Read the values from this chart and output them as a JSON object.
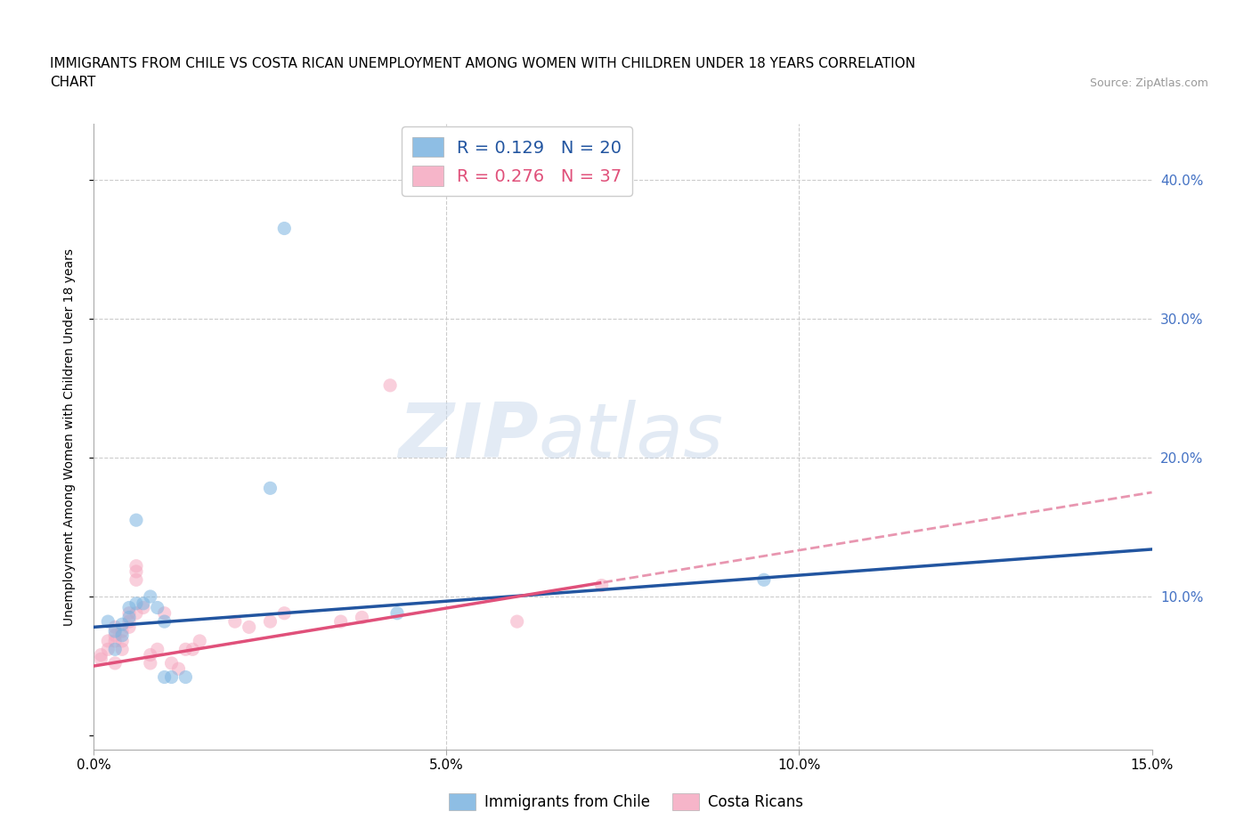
{
  "title_line1": "IMMIGRANTS FROM CHILE VS COSTA RICAN UNEMPLOYMENT AMONG WOMEN WITH CHILDREN UNDER 18 YEARS CORRELATION",
  "title_line2": "CHART",
  "source": "Source: ZipAtlas.com",
  "ylabel": "Unemployment Among Women with Children Under 18 years",
  "xlim": [
    0.0,
    0.15
  ],
  "ylim": [
    -0.01,
    0.44
  ],
  "xticks": [
    0.0,
    0.05,
    0.1,
    0.15
  ],
  "xtick_labels": [
    "0.0%",
    "5.0%",
    "10.0%",
    "15.0%"
  ],
  "yticks": [
    0.0,
    0.1,
    0.2,
    0.3,
    0.4
  ],
  "blue_scatter": [
    [
      0.002,
      0.082
    ],
    [
      0.003,
      0.075
    ],
    [
      0.003,
      0.062
    ],
    [
      0.004,
      0.08
    ],
    [
      0.004,
      0.072
    ],
    [
      0.005,
      0.092
    ],
    [
      0.005,
      0.085
    ],
    [
      0.006,
      0.095
    ],
    [
      0.006,
      0.155
    ],
    [
      0.007,
      0.095
    ],
    [
      0.008,
      0.1
    ],
    [
      0.009,
      0.092
    ],
    [
      0.01,
      0.082
    ],
    [
      0.01,
      0.042
    ],
    [
      0.011,
      0.042
    ],
    [
      0.013,
      0.042
    ],
    [
      0.025,
      0.178
    ],
    [
      0.027,
      0.365
    ],
    [
      0.043,
      0.088
    ],
    [
      0.095,
      0.112
    ]
  ],
  "pink_scatter": [
    [
      0.001,
      0.055
    ],
    [
      0.001,
      0.058
    ],
    [
      0.002,
      0.068
    ],
    [
      0.002,
      0.062
    ],
    [
      0.003,
      0.068
    ],
    [
      0.003,
      0.072
    ],
    [
      0.003,
      0.078
    ],
    [
      0.003,
      0.052
    ],
    [
      0.004,
      0.062
    ],
    [
      0.004,
      0.068
    ],
    [
      0.004,
      0.075
    ],
    [
      0.005,
      0.078
    ],
    [
      0.005,
      0.082
    ],
    [
      0.005,
      0.088
    ],
    [
      0.006,
      0.112
    ],
    [
      0.006,
      0.118
    ],
    [
      0.006,
      0.122
    ],
    [
      0.006,
      0.088
    ],
    [
      0.007,
      0.092
    ],
    [
      0.008,
      0.058
    ],
    [
      0.008,
      0.052
    ],
    [
      0.009,
      0.062
    ],
    [
      0.01,
      0.088
    ],
    [
      0.011,
      0.052
    ],
    [
      0.012,
      0.048
    ],
    [
      0.013,
      0.062
    ],
    [
      0.014,
      0.062
    ],
    [
      0.015,
      0.068
    ],
    [
      0.02,
      0.082
    ],
    [
      0.022,
      0.078
    ],
    [
      0.025,
      0.082
    ],
    [
      0.027,
      0.088
    ],
    [
      0.035,
      0.082
    ],
    [
      0.038,
      0.085
    ],
    [
      0.042,
      0.252
    ],
    [
      0.06,
      0.082
    ],
    [
      0.072,
      0.108
    ]
  ],
  "blue_color": "#7ab3e0",
  "pink_color": "#f5a8c0",
  "blue_line_color": "#2255a0",
  "pink_line_color": "#e0507a",
  "pink_dash_color": "#e896b0",
  "legend_R1": "R = 0.129",
  "legend_N1": "N = 20",
  "legend_R2": "R = 0.276",
  "legend_N2": "N = 37",
  "watermark_zip": "ZIP",
  "watermark_atlas": "atlas",
  "background_color": "#ffffff",
  "grid_color": "#cccccc",
  "title_fontsize": 11,
  "axis_label_fontsize": 10,
  "tick_fontsize": 11,
  "right_tick_color": "#4472c4",
  "scatter_size": 120,
  "scatter_alpha": 0.55
}
